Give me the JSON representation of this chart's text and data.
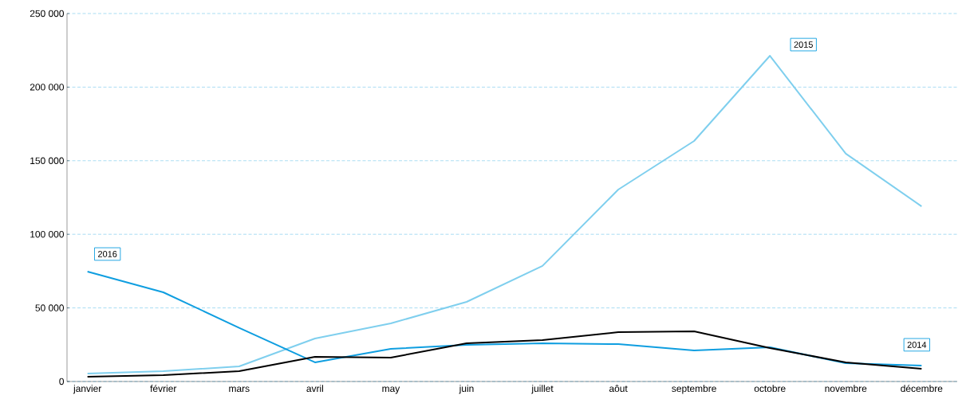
{
  "chart_data": {
    "type": "line",
    "categories": [
      "janvier",
      "février",
      "mars",
      "avril",
      "may",
      "juin",
      "juillet",
      "aôut",
      "septembre",
      "octobre",
      "novembre",
      "décembre"
    ],
    "series": [
      {
        "name": "2015",
        "color": "#7fcfee",
        "values": [
          5400,
          7000,
          10300,
          29200,
          39500,
          54100,
          78500,
          130400,
          163400,
          221300,
          154800,
          119000
        ]
      },
      {
        "name": "2016",
        "color": "#0f9ee0",
        "values": [
          74700,
          60600,
          36500,
          13000,
          22200,
          24900,
          26000,
          25400,
          21100,
          23300,
          12400,
          10800
        ]
      },
      {
        "name": "2014",
        "color": "#000000",
        "values": [
          3200,
          4300,
          7000,
          16800,
          16200,
          26000,
          28100,
          33500,
          34100,
          22700,
          13000,
          8700
        ]
      }
    ],
    "ylim": [
      0,
      250000
    ],
    "yticks": [
      0,
      {
        "value": 50000,
        "label": "50 000"
      },
      {
        "value": 100000,
        "label": "100 000"
      },
      {
        "value": 150000,
        "label": "150 000"
      },
      {
        "value": 200000,
        "label": "200 000"
      },
      {
        "value": 250000,
        "label": "250 000"
      }
    ],
    "grid": "y",
    "marker": "none",
    "line_style": "solid"
  }
}
